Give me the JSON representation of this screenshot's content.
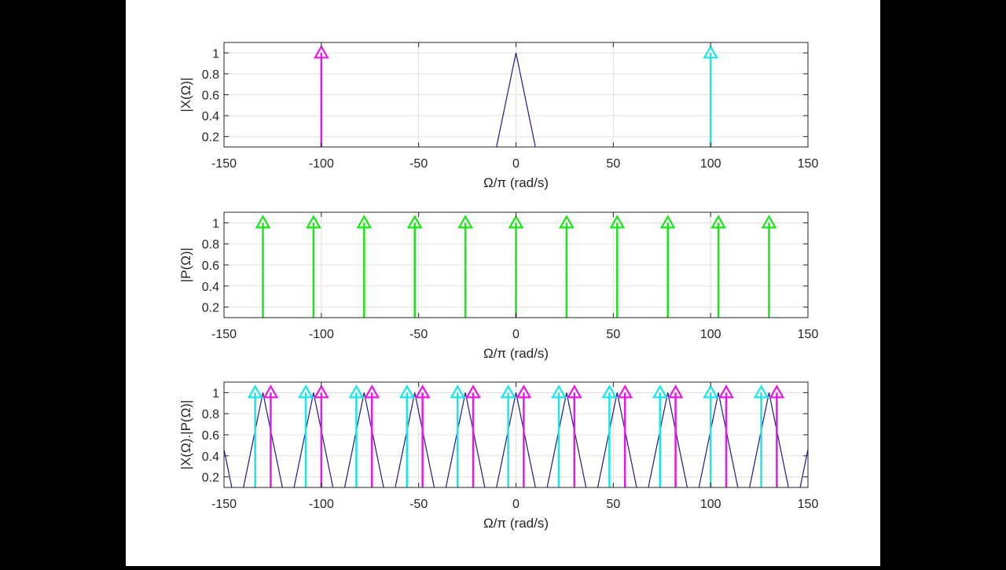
{
  "colors": {
    "triangle": "#1a1a8c",
    "magenta": "#e619e6",
    "cyan": "#19e6e6",
    "green": "#19e619",
    "grid": "#e0e0e0",
    "axis": "#262626"
  },
  "chart_data": [
    {
      "type": "stem",
      "ylabel": "|X(Ω)|",
      "xlabel": "Ω/π (rad/s)",
      "xlim": [
        -150,
        150
      ],
      "ylim": [
        0.1,
        1.1
      ],
      "xticks": [
        -150,
        -100,
        -50,
        0,
        50,
        100,
        150
      ],
      "xtick_labels": [
        "-150",
        "-100",
        "-50",
        "0",
        "50",
        "100",
        "150"
      ],
      "yticks": [
        0.2,
        0.4,
        0.6,
        0.8,
        1
      ],
      "ytick_labels": [
        "0.2",
        "0.4",
        "0.6",
        "0.8",
        "1"
      ],
      "grid": true,
      "triangles": [
        {
          "center": 0,
          "half_width": 10,
          "height": 1
        }
      ],
      "stems": [
        {
          "color": "magenta",
          "x": [
            -100
          ],
          "y": [
            1
          ]
        },
        {
          "color": "cyan",
          "x": [
            100
          ],
          "y": [
            1
          ]
        }
      ]
    },
    {
      "type": "stem",
      "ylabel": "|P(Ω)|",
      "xlabel": "Ω/π (rad/s)",
      "xlim": [
        -150,
        150
      ],
      "ylim": [
        0.1,
        1.1
      ],
      "xticks": [
        -150,
        -100,
        -50,
        0,
        50,
        100,
        150
      ],
      "xtick_labels": [
        "-150",
        "-100",
        "-50",
        "0",
        "50",
        "100",
        "150"
      ],
      "yticks": [
        0.2,
        0.4,
        0.6,
        0.8,
        1
      ],
      "ytick_labels": [
        "0.2",
        "0.4",
        "0.6",
        "0.8",
        "1"
      ],
      "grid": true,
      "triangles": [],
      "stems": [
        {
          "color": "green",
          "x": [
            -130,
            -104,
            -78,
            -52,
            -26,
            0,
            26,
            52,
            78,
            104,
            130
          ],
          "y": [
            1,
            1,
            1,
            1,
            1,
            1,
            1,
            1,
            1,
            1,
            1
          ]
        }
      ]
    },
    {
      "type": "stem",
      "ylabel": "|X(Ω).|P(Ω)|",
      "xlabel": "Ω/π (rad/s)",
      "xlim": [
        -150,
        150
      ],
      "ylim": [
        0.1,
        1.1
      ],
      "xticks": [
        -150,
        -100,
        -50,
        0,
        50,
        100,
        150
      ],
      "xtick_labels": [
        "-150",
        "-100",
        "-50",
        "0",
        "50",
        "100",
        "150"
      ],
      "yticks": [
        0.2,
        0.4,
        0.6,
        0.8,
        1
      ],
      "ytick_labels": [
        "0.2",
        "0.4",
        "0.6",
        "0.8",
        "1"
      ],
      "grid": true,
      "triangles": [
        {
          "center": -156,
          "half_width": 10,
          "height": 1
        },
        {
          "center": -130,
          "half_width": 10,
          "height": 1
        },
        {
          "center": -104,
          "half_width": 10,
          "height": 1
        },
        {
          "center": -78,
          "half_width": 10,
          "height": 1
        },
        {
          "center": -52,
          "half_width": 10,
          "height": 1
        },
        {
          "center": -26,
          "half_width": 10,
          "height": 1
        },
        {
          "center": 0,
          "half_width": 10,
          "height": 1
        },
        {
          "center": 26,
          "half_width": 10,
          "height": 1
        },
        {
          "center": 52,
          "half_width": 10,
          "height": 1
        },
        {
          "center": 78,
          "half_width": 10,
          "height": 1
        },
        {
          "center": 104,
          "half_width": 10,
          "height": 1
        },
        {
          "center": 130,
          "half_width": 10,
          "height": 1
        },
        {
          "center": 156,
          "half_width": 10,
          "height": 1
        }
      ],
      "stems": [
        {
          "color": "cyan",
          "x": [
            -134,
            -108,
            -82,
            -56,
            -30,
            -4,
            22,
            48,
            74,
            100,
            126
          ],
          "y": [
            1,
            1,
            1,
            1,
            1,
            1,
            1,
            1,
            1,
            1,
            1
          ]
        },
        {
          "color": "magenta",
          "x": [
            -126,
            -100,
            -74,
            -48,
            -22,
            4,
            30,
            56,
            82,
            108,
            134
          ],
          "y": [
            1,
            1,
            1,
            1,
            1,
            1,
            1,
            1,
            1,
            1,
            1
          ]
        }
      ]
    }
  ]
}
